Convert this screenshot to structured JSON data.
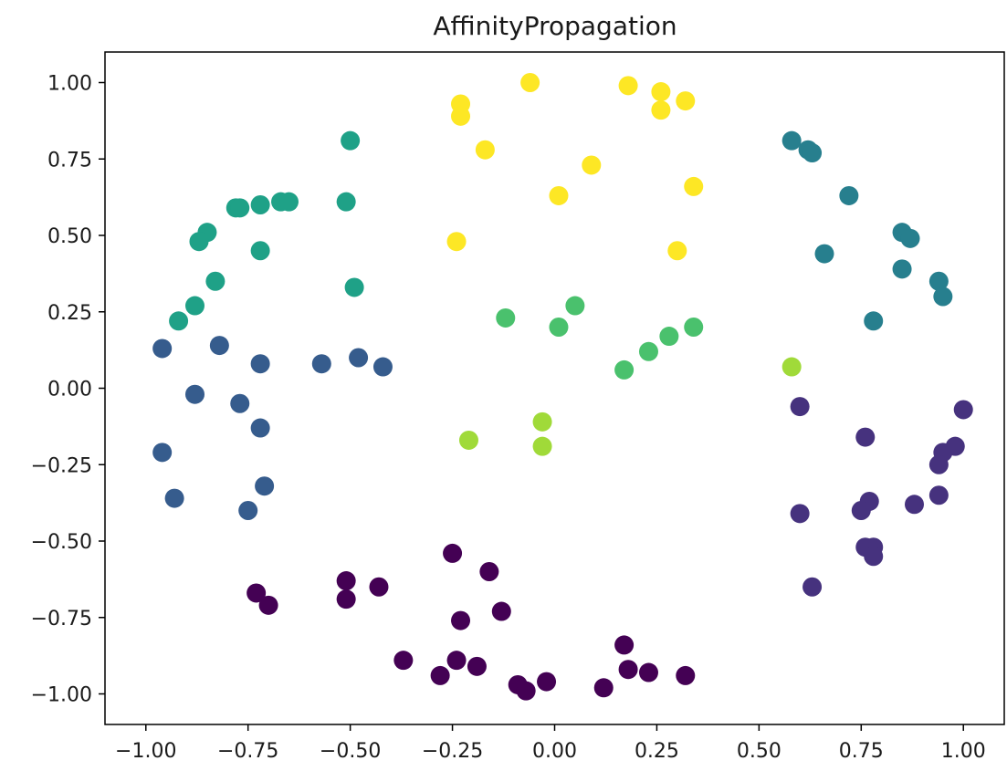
{
  "chart_data": {
    "type": "scatter",
    "title": "AffinityPropagation",
    "xlabel": "",
    "ylabel": "",
    "xlim": [
      -1.1,
      1.1
    ],
    "ylim": [
      -1.1,
      1.1
    ],
    "grid": false,
    "xticks": [
      "−1.00",
      "−0.75",
      "−0.50",
      "−0.25",
      "0.00",
      "0.25",
      "0.50",
      "0.75",
      "1.00"
    ],
    "xtick_values": [
      -1.0,
      -0.75,
      -0.5,
      -0.25,
      0.0,
      0.25,
      0.5,
      0.75,
      1.0
    ],
    "yticks": [
      "1.00",
      "0.75",
      "0.50",
      "0.25",
      "0.00",
      "−0.25",
      "−0.50",
      "−0.75",
      "−1.00"
    ],
    "ytick_values": [
      1.0,
      0.75,
      0.5,
      0.25,
      0.0,
      -0.25,
      -0.5,
      -0.75,
      -1.0
    ],
    "cluster_colors": [
      "#440154",
      "#46327e",
      "#365c8d",
      "#277f8e",
      "#1fa187",
      "#4ac16d",
      "#a0da39",
      "#fde725"
    ],
    "points": [
      {
        "x": -0.25,
        "y": -0.54,
        "c": 0
      },
      {
        "x": -0.16,
        "y": -0.6,
        "c": 0
      },
      {
        "x": -0.51,
        "y": -0.63,
        "c": 0
      },
      {
        "x": -0.51,
        "y": -0.69,
        "c": 0
      },
      {
        "x": -0.43,
        "y": -0.65,
        "c": 0
      },
      {
        "x": -0.73,
        "y": -0.67,
        "c": 0
      },
      {
        "x": -0.7,
        "y": -0.71,
        "c": 0
      },
      {
        "x": -0.23,
        "y": -0.76,
        "c": 0
      },
      {
        "x": -0.13,
        "y": -0.73,
        "c": 0
      },
      {
        "x": -0.37,
        "y": -0.89,
        "c": 0
      },
      {
        "x": -0.24,
        "y": -0.89,
        "c": 0
      },
      {
        "x": -0.28,
        "y": -0.94,
        "c": 0
      },
      {
        "x": -0.19,
        "y": -0.91,
        "c": 0
      },
      {
        "x": -0.09,
        "y": -0.97,
        "c": 0
      },
      {
        "x": -0.07,
        "y": -0.99,
        "c": 0
      },
      {
        "x": -0.02,
        "y": -0.96,
        "c": 0
      },
      {
        "x": 0.12,
        "y": -0.98,
        "c": 0
      },
      {
        "x": 0.17,
        "y": -0.84,
        "c": 0
      },
      {
        "x": 0.18,
        "y": -0.92,
        "c": 0
      },
      {
        "x": 0.23,
        "y": -0.93,
        "c": 0
      },
      {
        "x": 0.32,
        "y": -0.94,
        "c": 0
      },
      {
        "x": 0.6,
        "y": -0.06,
        "c": 1
      },
      {
        "x": 1.0,
        "y": -0.07,
        "c": 1
      },
      {
        "x": 0.76,
        "y": -0.16,
        "c": 1
      },
      {
        "x": 0.98,
        "y": -0.19,
        "c": 1
      },
      {
        "x": 0.95,
        "y": -0.21,
        "c": 1
      },
      {
        "x": 0.94,
        "y": -0.25,
        "c": 1
      },
      {
        "x": 0.94,
        "y": -0.35,
        "c": 1
      },
      {
        "x": 0.88,
        "y": -0.38,
        "c": 1
      },
      {
        "x": 0.77,
        "y": -0.37,
        "c": 1
      },
      {
        "x": 0.75,
        "y": -0.4,
        "c": 1
      },
      {
        "x": 0.6,
        "y": -0.41,
        "c": 1
      },
      {
        "x": 0.76,
        "y": -0.52,
        "c": 1
      },
      {
        "x": 0.78,
        "y": -0.52,
        "c": 1
      },
      {
        "x": 0.78,
        "y": -0.55,
        "c": 1
      },
      {
        "x": 0.63,
        "y": -0.65,
        "c": 1
      },
      {
        "x": -0.96,
        "y": 0.13,
        "c": 2
      },
      {
        "x": -0.82,
        "y": 0.14,
        "c": 2
      },
      {
        "x": -0.72,
        "y": 0.08,
        "c": 2
      },
      {
        "x": -0.57,
        "y": 0.08,
        "c": 2
      },
      {
        "x": -0.48,
        "y": 0.1,
        "c": 2
      },
      {
        "x": -0.42,
        "y": 0.07,
        "c": 2
      },
      {
        "x": -0.88,
        "y": -0.02,
        "c": 2
      },
      {
        "x": -0.77,
        "y": -0.05,
        "c": 2
      },
      {
        "x": -0.72,
        "y": -0.13,
        "c": 2
      },
      {
        "x": -0.96,
        "y": -0.21,
        "c": 2
      },
      {
        "x": -0.71,
        "y": -0.32,
        "c": 2
      },
      {
        "x": -0.93,
        "y": -0.36,
        "c": 2
      },
      {
        "x": -0.75,
        "y": -0.4,
        "c": 2
      },
      {
        "x": 0.58,
        "y": 0.81,
        "c": 3
      },
      {
        "x": 0.62,
        "y": 0.78,
        "c": 3
      },
      {
        "x": 0.63,
        "y": 0.77,
        "c": 3
      },
      {
        "x": 0.72,
        "y": 0.63,
        "c": 3
      },
      {
        "x": 0.85,
        "y": 0.51,
        "c": 3
      },
      {
        "x": 0.87,
        "y": 0.49,
        "c": 3
      },
      {
        "x": 0.66,
        "y": 0.44,
        "c": 3
      },
      {
        "x": 0.85,
        "y": 0.39,
        "c": 3
      },
      {
        "x": 0.94,
        "y": 0.35,
        "c": 3
      },
      {
        "x": 0.95,
        "y": 0.3,
        "c": 3
      },
      {
        "x": 0.78,
        "y": 0.22,
        "c": 3
      },
      {
        "x": -0.5,
        "y": 0.81,
        "c": 4
      },
      {
        "x": -0.51,
        "y": 0.61,
        "c": 4
      },
      {
        "x": -0.78,
        "y": 0.59,
        "c": 4
      },
      {
        "x": -0.77,
        "y": 0.59,
        "c": 4
      },
      {
        "x": -0.72,
        "y": 0.6,
        "c": 4
      },
      {
        "x": -0.67,
        "y": 0.61,
        "c": 4
      },
      {
        "x": -0.65,
        "y": 0.61,
        "c": 4
      },
      {
        "x": -0.85,
        "y": 0.51,
        "c": 4
      },
      {
        "x": -0.87,
        "y": 0.48,
        "c": 4
      },
      {
        "x": -0.72,
        "y": 0.45,
        "c": 4
      },
      {
        "x": -0.83,
        "y": 0.35,
        "c": 4
      },
      {
        "x": -0.49,
        "y": 0.33,
        "c": 4
      },
      {
        "x": -0.88,
        "y": 0.27,
        "c": 4
      },
      {
        "x": -0.92,
        "y": 0.22,
        "c": 4
      },
      {
        "x": -0.12,
        "y": 0.23,
        "c": 5
      },
      {
        "x": 0.05,
        "y": 0.27,
        "c": 5
      },
      {
        "x": 0.01,
        "y": 0.2,
        "c": 5
      },
      {
        "x": 0.34,
        "y": 0.2,
        "c": 5
      },
      {
        "x": 0.28,
        "y": 0.17,
        "c": 5
      },
      {
        "x": 0.23,
        "y": 0.12,
        "c": 5
      },
      {
        "x": 0.17,
        "y": 0.06,
        "c": 5
      },
      {
        "x": 0.58,
        "y": 0.07,
        "c": 6
      },
      {
        "x": -0.03,
        "y": -0.11,
        "c": 6
      },
      {
        "x": -0.21,
        "y": -0.17,
        "c": 6
      },
      {
        "x": -0.03,
        "y": -0.19,
        "c": 6
      },
      {
        "x": -0.06,
        "y": 1.0,
        "c": 7
      },
      {
        "x": 0.18,
        "y": 0.99,
        "c": 7
      },
      {
        "x": 0.26,
        "y": 0.97,
        "c": 7
      },
      {
        "x": 0.32,
        "y": 0.94,
        "c": 7
      },
      {
        "x": -0.23,
        "y": 0.93,
        "c": 7
      },
      {
        "x": 0.26,
        "y": 0.91,
        "c": 7
      },
      {
        "x": -0.23,
        "y": 0.89,
        "c": 7
      },
      {
        "x": -0.17,
        "y": 0.78,
        "c": 7
      },
      {
        "x": 0.09,
        "y": 0.73,
        "c": 7
      },
      {
        "x": 0.34,
        "y": 0.66,
        "c": 7
      },
      {
        "x": 0.01,
        "y": 0.63,
        "c": 7
      },
      {
        "x": -0.24,
        "y": 0.48,
        "c": 7
      },
      {
        "x": 0.3,
        "y": 0.45,
        "c": 7
      }
    ]
  }
}
